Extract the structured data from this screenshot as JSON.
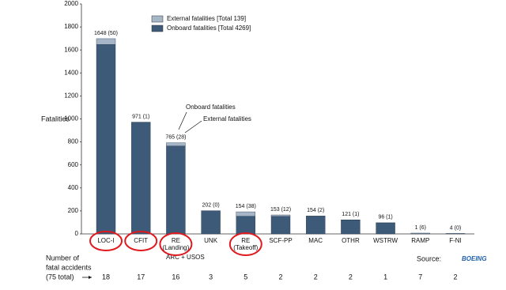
{
  "chart_data": {
    "type": "stacked-bar",
    "y_label": "Fatalities",
    "categories": [
      "LOC-I",
      "CFIT",
      "RE (Landing)",
      "UNK",
      "RE (Takeoff)",
      "SCF-PP",
      "MAC",
      "OTHR",
      "WSTRW",
      "RAMP",
      "F-NI"
    ],
    "category_notes": [
      null,
      null,
      "ARC + USOS",
      null,
      null,
      null,
      null,
      null,
      null,
      null,
      null
    ],
    "highlighted": [
      true,
      true,
      true,
      false,
      true,
      false,
      false,
      false,
      false,
      false,
      false
    ],
    "highlight_color": "#e0191e",
    "series": [
      {
        "name": "Onboard fatalities  [Total 4269]",
        "color": "#3d5a78",
        "values": [
          1648,
          971,
          765,
          202,
          154,
          153,
          154,
          121,
          96,
          1,
          4
        ],
        "value_labels": [
          "1648 (50)",
          "971 (1)",
          "765 (28)",
          "202 (0)",
          "154 (38)",
          "153 (12)",
          "154 (2)",
          "121 (1)",
          "96 (1)",
          "1 (6)",
          "4 (0)"
        ]
      },
      {
        "name": "External fatalities  [Total 139]",
        "color": "#a7b6c6",
        "values": [
          50,
          1,
          28,
          0,
          38,
          12,
          2,
          1,
          1,
          6,
          0
        ]
      }
    ],
    "ylim": [
      0,
      2000
    ],
    "yticks": [
      0,
      200,
      400,
      600,
      800,
      1000,
      1200,
      1400,
      1600,
      1800,
      2000
    ],
    "annotations": [
      "Onboard fatalities",
      "External fatalities"
    ],
    "accidents_label": [
      "Number of",
      "fatal accidents",
      "(75 total)"
    ],
    "accidents": [
      18,
      17,
      16,
      3,
      5,
      2,
      2,
      2,
      1,
      7,
      2
    ],
    "source_label": "Source:",
    "source_logo": "BOEING"
  }
}
